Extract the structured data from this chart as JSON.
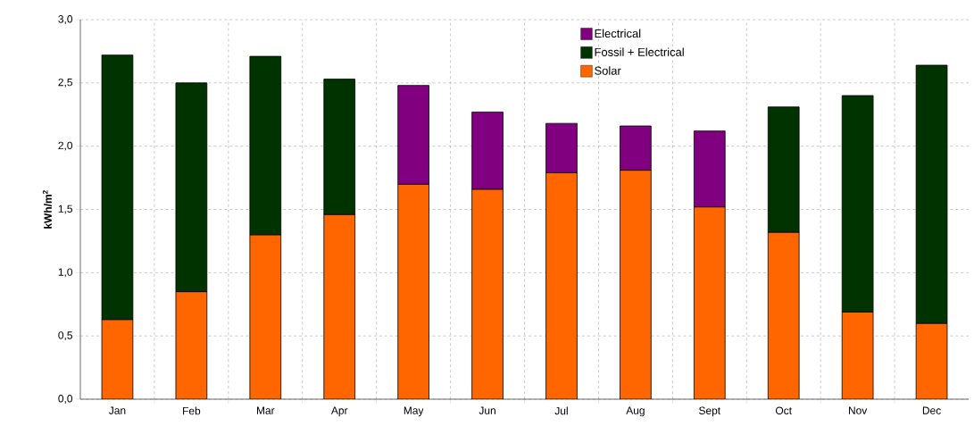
{
  "chart_data": {
    "type": "bar",
    "stacked": true,
    "ylabel": "kWh/m$^{2}$",
    "categories": [
      "Jan",
      "Feb",
      "Mar",
      "Apr",
      "May",
      "Jun",
      "Jul",
      "Aug",
      "Sept",
      "Oct",
      "Nov",
      "Dec"
    ],
    "series": [
      {
        "name": "Solar",
        "color": "#ff6600",
        "values": [
          0.63,
          0.85,
          1.3,
          1.46,
          1.7,
          1.66,
          1.79,
          1.81,
          1.52,
          1.32,
          0.69,
          0.6
        ]
      },
      {
        "name": "Fossil + Electrical",
        "color": "#003300",
        "values": [
          2.09,
          1.65,
          1.41,
          1.07,
          null,
          null,
          null,
          null,
          null,
          0.99,
          1.71,
          2.04
        ]
      },
      {
        "name": "Electrical",
        "color": "#800080",
        "values": [
          null,
          null,
          null,
          null,
          0.78,
          0.61,
          0.39,
          0.35,
          0.6,
          null,
          null,
          null
        ]
      }
    ],
    "ylim": [
      0,
      3.0
    ],
    "yticks": [
      {
        "value": 0,
        "label": "0,0"
      },
      {
        "value": 0.5,
        "label": "0,5"
      },
      {
        "value": 1.0,
        "label": "1,0"
      },
      {
        "value": 1.5,
        "label": "1,5"
      },
      {
        "value": 2.0,
        "label": "2,0"
      },
      {
        "value": 2.5,
        "label": "2,5"
      },
      {
        "value": 3.0,
        "label": "3,0"
      }
    ],
    "grid": true,
    "legend": "top"
  }
}
